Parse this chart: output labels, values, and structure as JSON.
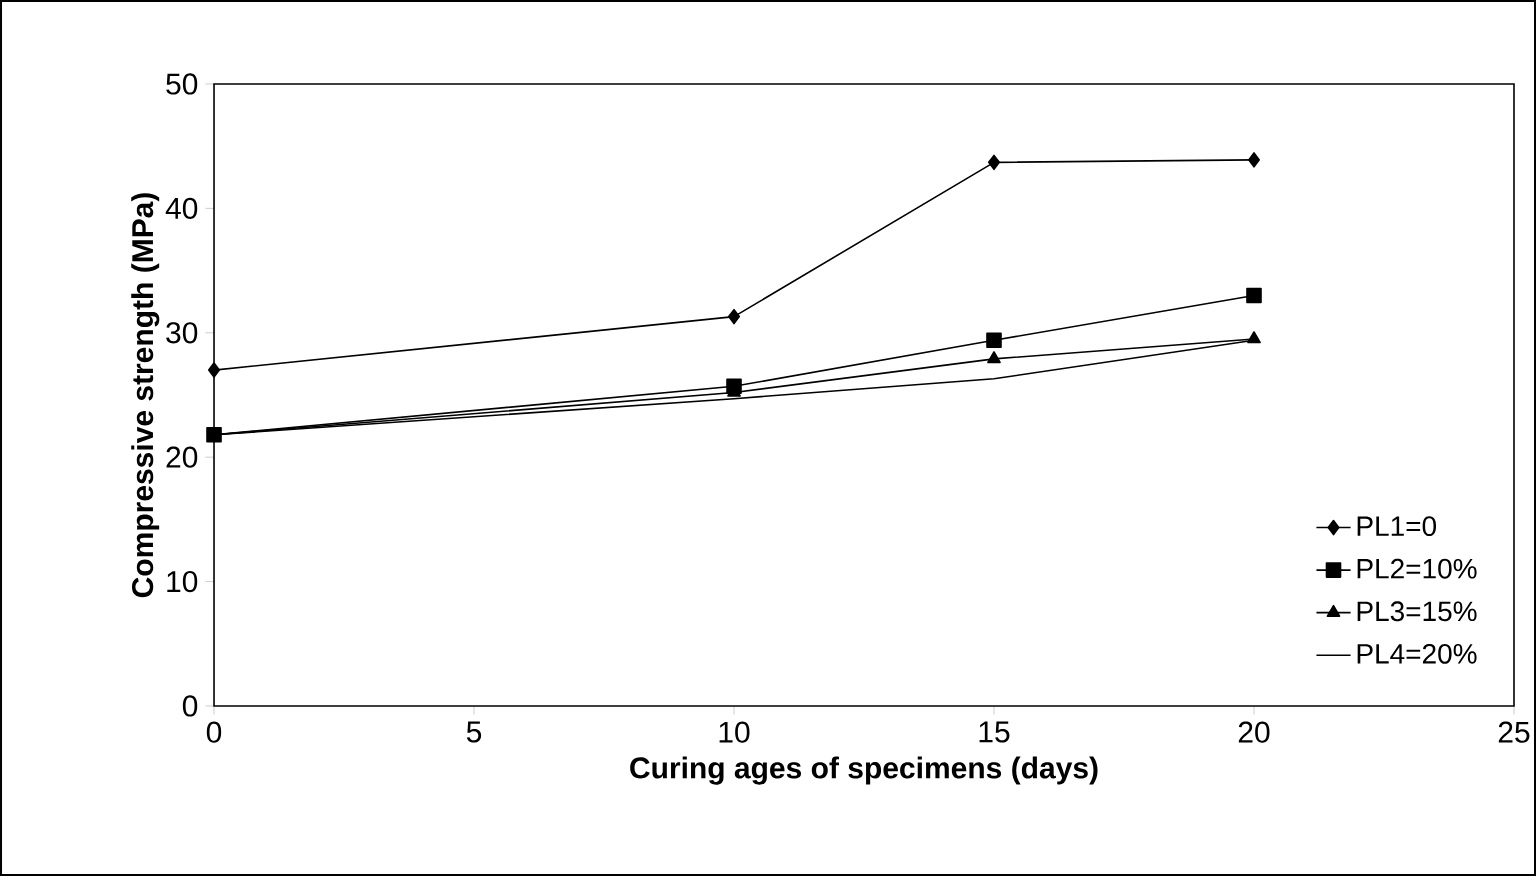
{
  "chart_data": {
    "type": "line",
    "xlabel": "Curing ages of specimens (days)",
    "ylabel": "Compressive strength (MPa)",
    "x": [
      0,
      10,
      15,
      20
    ],
    "series": [
      {
        "name": "PL1=0",
        "color": "#000000",
        "marker": "diamond",
        "values": [
          27,
          31.3,
          43.7,
          43.9
        ]
      },
      {
        "name": "PL2=10%",
        "color": "#000000",
        "marker": "square",
        "values": [
          21.8,
          25.7,
          29.4,
          33
        ]
      },
      {
        "name": "PL3=15%",
        "color": "#000000",
        "marker": "triangle",
        "values": [
          21.8,
          25.2,
          27.9,
          29.5
        ]
      },
      {
        "name": "PL4=20%",
        "color": "#000000",
        "marker": "none",
        "values": [
          21.8,
          24.7,
          26.3,
          29.4
        ]
      }
    ],
    "xlim": [
      0,
      25
    ],
    "ylim": [
      0,
      50
    ],
    "xticks": [
      0,
      5,
      10,
      15,
      20,
      25
    ],
    "yticks": [
      0,
      10,
      20,
      30,
      40,
      50
    ],
    "grid": false,
    "legend": "bottom right",
    "line_style": "solid"
  }
}
